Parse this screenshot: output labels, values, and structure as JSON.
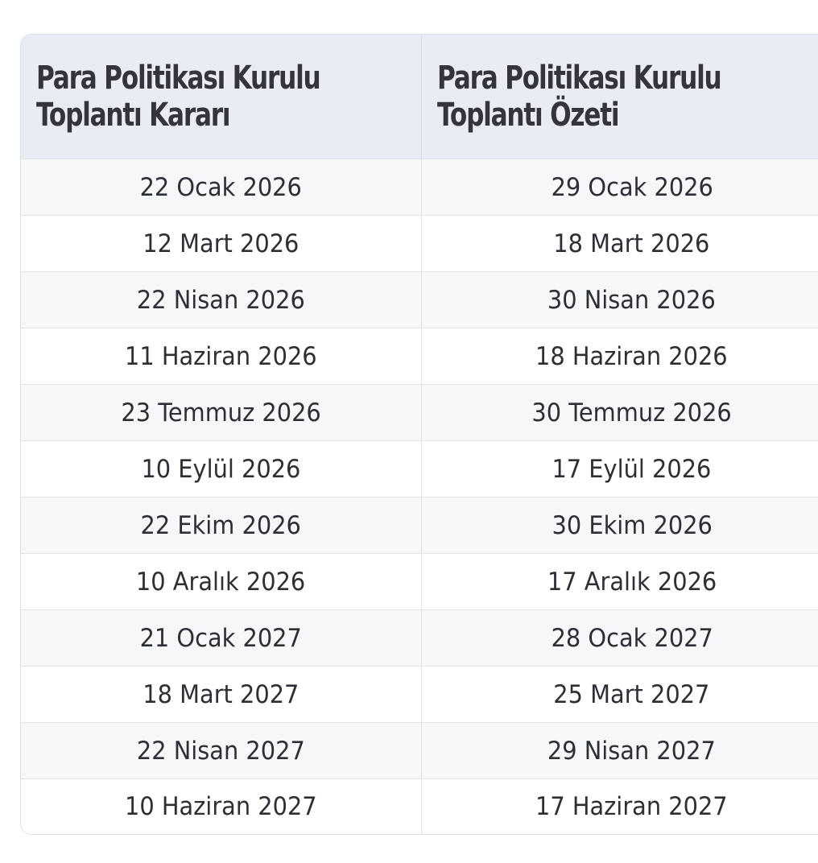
{
  "table": {
    "headers": [
      {
        "line1": "Para Politikası Kurulu",
        "line2": "Toplantı Kararı"
      },
      {
        "line1": "Para Politikası Kurulu",
        "line2": "Toplantı Özeti"
      }
    ],
    "rows": [
      [
        "22 Ocak 2026",
        "29 Ocak 2026"
      ],
      [
        "12 Mart 2026",
        "18 Mart 2026"
      ],
      [
        "22 Nisan 2026",
        "30 Nisan 2026"
      ],
      [
        "11 Haziran 2026",
        "18 Haziran 2026"
      ],
      [
        "23 Temmuz 2026",
        "30 Temmuz 2026"
      ],
      [
        "10 Eylül 2026",
        "17 Eylül 2026"
      ],
      [
        "22 Ekim 2026",
        "30 Ekim 2026"
      ],
      [
        "10 Aralık 2026",
        "17 Aralık 2026"
      ],
      [
        "21 Ocak 2027",
        "28 Ocak 2027"
      ],
      [
        "18 Mart 2027",
        "25 Mart 2027"
      ],
      [
        "22 Nisan 2027",
        "29 Nisan 2027"
      ],
      [
        "10 Haziran 2027",
        "17 Haziran 2027"
      ]
    ]
  },
  "colors": {
    "header_bg": "#e9ecf5",
    "header_text": "#33343d",
    "row_alt_bg": "#f7f7f9",
    "border": "#e1e3ea"
  }
}
